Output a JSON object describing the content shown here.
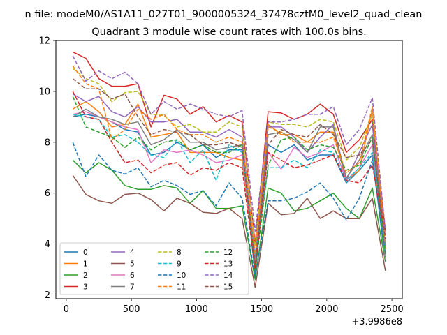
{
  "page": {
    "suptitle": "n file: modeM0/AS1A11_027T01_9000005324_37478cztM0_level2_quad_clean",
    "offset_label": "+3.9986e8"
  },
  "chart_data": {
    "type": "line",
    "title": "Quadrant 3 module wise count rates with 100.0s bins.",
    "xlabel": "",
    "ylabel": "",
    "xlim": [
      -80,
      2580
    ],
    "ylim": [
      1.85,
      12.0
    ],
    "x_ticks": [
      0,
      500,
      1000,
      1500,
      2000,
      2500
    ],
    "y_ticks": [
      2,
      4,
      6,
      8,
      10,
      12
    ],
    "grid": false,
    "legend_position": "lower-left",
    "legend_columns": 4,
    "x": [
      50,
      150,
      250,
      350,
      450,
      550,
      650,
      750,
      850,
      950,
      1050,
      1150,
      1250,
      1350,
      1450,
      1550,
      1650,
      1750,
      1850,
      1950,
      2050,
      2150,
      2250,
      2350,
      2450
    ],
    "series": [
      {
        "name": "0",
        "color": "#1f77b4",
        "dash": "solid",
        "values": [
          9.0,
          9.1,
          9.0,
          8.8,
          8.5,
          8.4,
          7.5,
          7.6,
          8.0,
          7.7,
          7.9,
          7.4,
          7.7,
          7.7,
          2.8,
          7.9,
          7.6,
          7.9,
          7.3,
          7.5,
          7.5,
          6.4,
          6.9,
          7.5,
          3.3
        ]
      },
      {
        "name": "1",
        "color": "#ff7f0e",
        "dash": "solid",
        "values": [
          9.3,
          9.6,
          9.2,
          8.6,
          8.7,
          9.5,
          8.2,
          8.3,
          8.4,
          7.6,
          7.6,
          7.6,
          7.4,
          7.3,
          3.1,
          8.7,
          8.3,
          8.3,
          8.0,
          8.4,
          8.4,
          6.5,
          6.9,
          9.3,
          3.8
        ]
      },
      {
        "name": "2",
        "color": "#2ca02c",
        "dash": "solid",
        "values": [
          7.3,
          6.8,
          7.2,
          6.9,
          6.3,
          6.15,
          6.15,
          6.3,
          6.2,
          5.6,
          6.1,
          5.4,
          5.4,
          5.5,
          2.6,
          6.2,
          6.0,
          5.3,
          5.4,
          5.7,
          6.0,
          5.4,
          5.0,
          6.2,
          3.3
        ]
      },
      {
        "name": "3",
        "color": "#d62728",
        "dash": "solid",
        "values": [
          11.55,
          11.3,
          10.5,
          10.2,
          10.2,
          10.3,
          8.6,
          9.85,
          9.7,
          9.1,
          9.4,
          8.8,
          9.05,
          8.8,
          4.0,
          9.2,
          9.15,
          8.9,
          9.1,
          9.5,
          9.1,
          7.6,
          8.1,
          8.9,
          4.5
        ]
      },
      {
        "name": "4",
        "color": "#9467bd",
        "dash": "solid",
        "values": [
          9.9,
          9.6,
          9.8,
          9.2,
          9.0,
          9.4,
          8.8,
          8.8,
          8.9,
          8.4,
          8.4,
          8.2,
          8.5,
          8.2,
          3.5,
          8.6,
          8.6,
          8.2,
          7.6,
          8.2,
          8.7,
          6.5,
          7.6,
          8.7,
          3.9
        ]
      },
      {
        "name": "5",
        "color": "#8c564b",
        "dash": "solid",
        "values": [
          6.7,
          5.95,
          5.7,
          5.6,
          5.95,
          6.0,
          5.75,
          5.3,
          5.8,
          5.6,
          5.25,
          5.2,
          5.4,
          5.0,
          2.3,
          5.6,
          5.15,
          5.2,
          5.8,
          5.0,
          5.3,
          5.0,
          5.0,
          5.8,
          2.95
        ]
      },
      {
        "name": "6",
        "color": "#e377c2",
        "dash": "solid",
        "values": [
          9.1,
          9.2,
          9.0,
          8.8,
          8.6,
          8.5,
          7.2,
          7.7,
          7.6,
          7.7,
          7.5,
          7.2,
          7.3,
          7.5,
          3.1,
          7.6,
          6.95,
          7.8,
          7.4,
          7.6,
          7.9,
          6.5,
          7.0,
          7.9,
          3.4
        ]
      },
      {
        "name": "7",
        "color": "#7f7f7f",
        "dash": "solid",
        "values": [
          9.0,
          9.3,
          9.0,
          8.9,
          8.7,
          8.8,
          7.9,
          8.1,
          8.5,
          8.0,
          8.0,
          7.7,
          7.8,
          7.9,
          3.1,
          8.3,
          8.4,
          8.1,
          7.6,
          8.6,
          8.6,
          6.6,
          7.3,
          8.3,
          3.6
        ]
      },
      {
        "name": "8",
        "color": "#bcbd22",
        "dash": "dashed",
        "values": [
          10.9,
          10.5,
          10.3,
          9.6,
          9.95,
          10.0,
          9.1,
          9.05,
          8.6,
          8.7,
          8.4,
          8.4,
          8.8,
          8.6,
          3.9,
          8.8,
          8.7,
          8.7,
          8.6,
          8.9,
          8.8,
          7.3,
          7.8,
          9.1,
          4.6
        ]
      },
      {
        "name": "9",
        "color": "#17becf",
        "dash": "dashed",
        "values": [
          9.1,
          9.0,
          8.9,
          8.2,
          8.3,
          8.0,
          7.5,
          7.4,
          8.1,
          7.2,
          7.7,
          6.5,
          7.9,
          7.6,
          3.4,
          7.0,
          7.0,
          7.3,
          7.0,
          7.7,
          7.6,
          6.5,
          7.0,
          7.6,
          3.6
        ]
      },
      {
        "name": "10",
        "color": "#1f77b4",
        "dash": "dashed",
        "values": [
          8.0,
          6.65,
          7.5,
          6.9,
          6.75,
          7.0,
          6.25,
          6.5,
          6.3,
          5.95,
          6.1,
          5.5,
          6.4,
          5.8,
          2.7,
          5.7,
          5.7,
          5.8,
          6.05,
          6.4,
          5.8,
          4.95,
          5.8,
          7.3,
          3.6
        ]
      },
      {
        "name": "11",
        "color": "#ff7f0e",
        "dash": "dashed",
        "values": [
          11.0,
          10.3,
          10.1,
          8.1,
          8.5,
          9.3,
          8.9,
          9.1,
          8.5,
          8.3,
          8.3,
          8.0,
          8.2,
          8.0,
          3.6,
          8.6,
          8.4,
          8.0,
          8.0,
          8.0,
          8.2,
          6.8,
          7.2,
          9.4,
          4.0
        ]
      },
      {
        "name": "12",
        "color": "#2ca02c",
        "dash": "dashed",
        "values": [
          9.8,
          8.6,
          8.4,
          8.2,
          7.8,
          8.2,
          7.7,
          8.0,
          8.1,
          7.7,
          7.9,
          7.6,
          7.6,
          7.9,
          2.9,
          7.1,
          8.1,
          8.2,
          7.7,
          7.9,
          7.8,
          6.9,
          7.1,
          8.2,
          3.5
        ]
      },
      {
        "name": "13",
        "color": "#d62728",
        "dash": "dashed",
        "values": [
          10.0,
          9.0,
          8.9,
          8.0,
          7.2,
          7.3,
          6.8,
          7.1,
          7.2,
          6.7,
          7.0,
          6.9,
          7.2,
          7.0,
          3.0,
          7.6,
          7.3,
          7.0,
          7.1,
          7.3,
          7.5,
          6.5,
          6.4,
          7.1,
          4.3
        ]
      },
      {
        "name": "14",
        "color": "#9467bd",
        "dash": "dashed",
        "values": [
          11.4,
          10.4,
          10.8,
          10.5,
          10.75,
          10.3,
          9.1,
          9.6,
          9.3,
          9.5,
          9.3,
          9.1,
          9.0,
          9.25,
          4.5,
          8.8,
          8.8,
          8.9,
          9.1,
          9.1,
          9.4,
          7.9,
          8.5,
          9.75,
          4.5
        ]
      },
      {
        "name": "15",
        "color": "#8c564b",
        "dash": "dashed",
        "values": [
          10.5,
          10.1,
          10.1,
          9.7,
          9.9,
          9.0,
          8.3,
          8.5,
          8.4,
          8.3,
          7.9,
          7.9,
          8.0,
          7.8,
          3.2,
          7.9,
          8.5,
          8.3,
          8.2,
          8.7,
          8.3,
          7.4,
          7.5,
          8.1,
          4.2
        ]
      }
    ]
  }
}
